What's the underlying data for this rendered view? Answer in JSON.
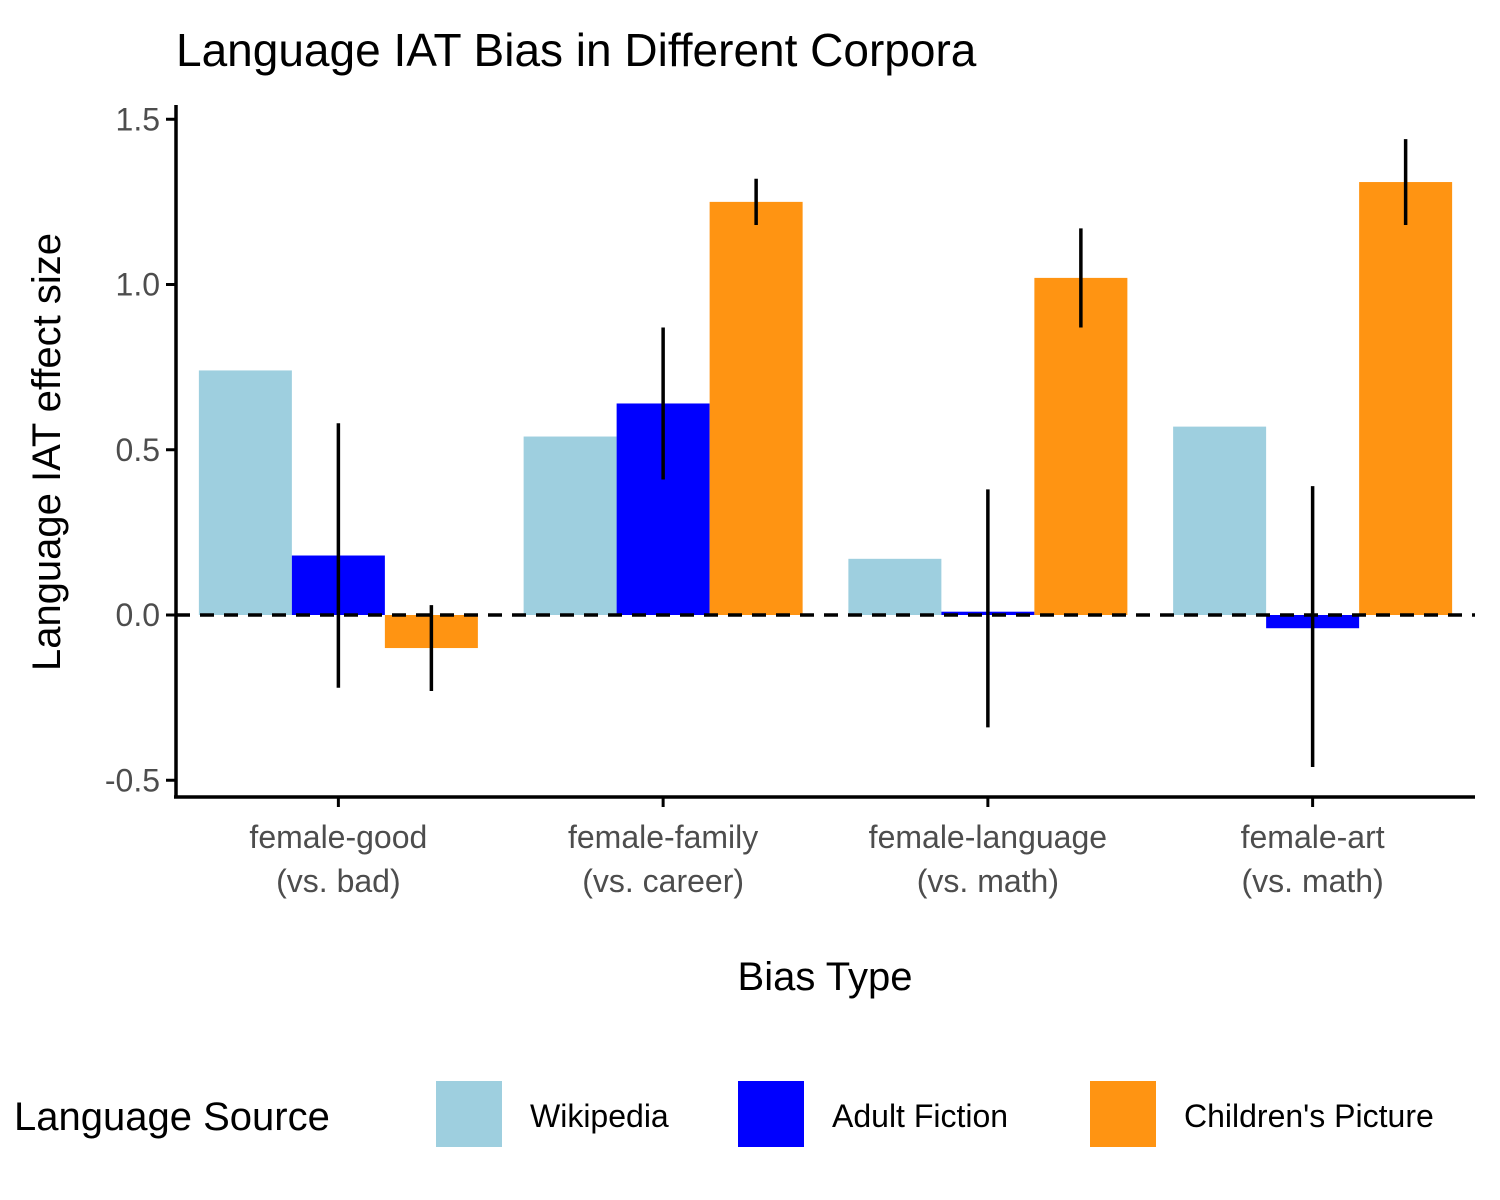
{
  "chart_data": {
    "type": "bar",
    "title": "Language IAT Bias in Different Corpora",
    "xlabel": "Bias Type",
    "ylabel": "Language IAT effect size",
    "categories": [
      [
        "female-good",
        "(vs. bad)"
      ],
      [
        "female-family",
        "(vs. career)"
      ],
      [
        "female-language",
        "(vs. math)"
      ],
      [
        "female-art",
        "(vs. math)"
      ]
    ],
    "ylim": [
      -0.55,
      1.5
    ],
    "yticks": [
      -0.5,
      0.0,
      0.5,
      1.0,
      1.5
    ],
    "ytick_labels": [
      "-0.5",
      "0.0",
      "0.5",
      "1.0",
      "1.5"
    ],
    "reference_line": {
      "y": 0,
      "style": "dashed"
    },
    "series": [
      {
        "name": "Wikipedia",
        "color": "#9ecfdf",
        "values": [
          0.74,
          0.54,
          0.17,
          0.57
        ],
        "errors": [
          null,
          null,
          null,
          null
        ]
      },
      {
        "name": "Adult Fiction",
        "color": "#0000ff",
        "values": [
          0.18,
          0.64,
          0.01,
          -0.04
        ],
        "errors": [
          [
            -0.22,
            0.58
          ],
          [
            0.41,
            0.87
          ],
          [
            -0.34,
            0.38
          ],
          [
            -0.46,
            0.39
          ]
        ]
      },
      {
        "name": "Children's Picture",
        "color": "#ff9412",
        "values": [
          -0.1,
          1.25,
          1.02,
          1.31
        ],
        "errors": [
          [
            -0.23,
            0.03
          ],
          [
            1.18,
            1.32
          ],
          [
            0.87,
            1.17
          ],
          [
            1.18,
            1.44
          ]
        ]
      }
    ],
    "legend": {
      "title": "Language Source",
      "position": "bottom"
    },
    "grid": false
  }
}
